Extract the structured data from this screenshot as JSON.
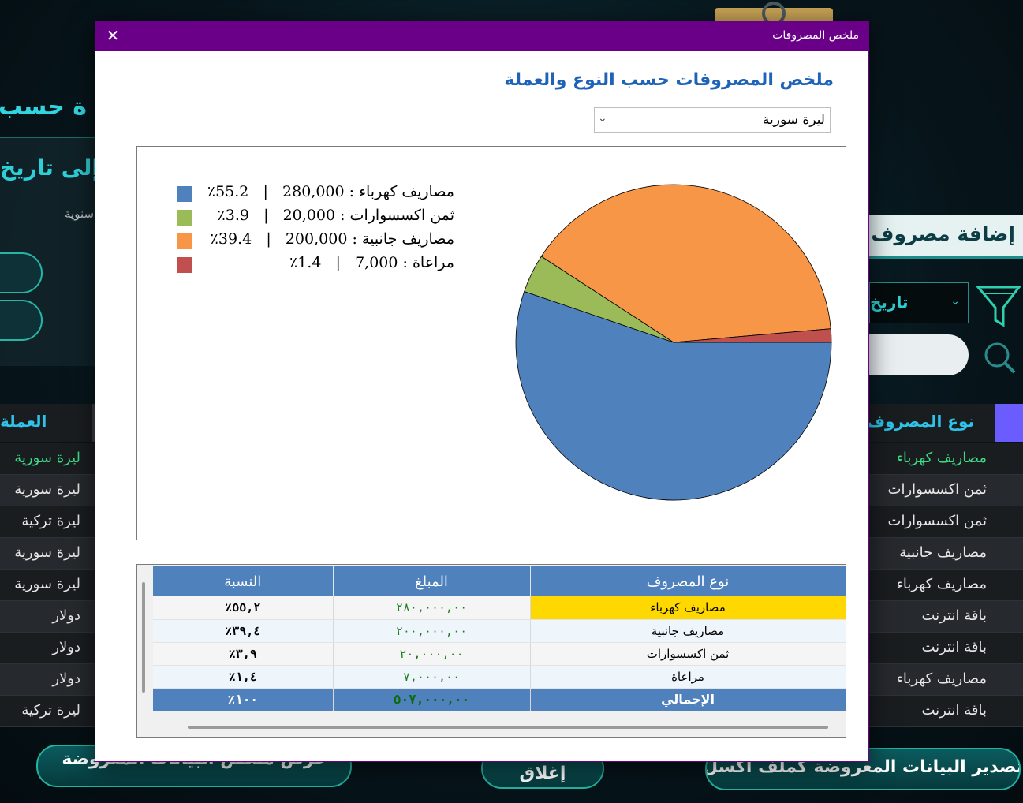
{
  "background": {
    "heading_left": "ة حسب الت",
    "to_date_label": "إلى تاريخ",
    "annual_text": "سنوية",
    "add_expense_title": "إضافة مصروف",
    "date_dropdown_text": "تاريخ",
    "currency_header": "العملة",
    "expense_type_header": "نوع المصروف",
    "left_rows": [
      "ليرة سورية",
      "ليرة سورية",
      "ليرة تركية",
      "ليرة سورية",
      "ليرة سورية",
      "دولار",
      "دولار",
      "دولار",
      "ليرة تركية"
    ],
    "right_rows": [
      "مصاريف كهرباء",
      "ثمن اكسسوارات",
      "ثمن اكسسوارات",
      "مصاريف جانبية",
      "مصاريف كهرباء",
      "باقة انترنت",
      "باقة انترنت",
      "مصاريف كهرباء",
      "باقة انترنت"
    ],
    "btn_summary": "عرض ملخص البيانات المعروضة",
    "btn_close": "إغلاق",
    "btn_export": "تصدير البيانات المعروضة كملف اكسل",
    "accent_color": "#32d4e0",
    "highlight_color": "#3ddc84"
  },
  "dialog": {
    "title": "ملخص المصروفات",
    "close_glyph": "✕",
    "heading": "ملخص المصروفات حسب النوع والعملة",
    "currency_selected": "ليرة سورية",
    "grid": {
      "headers": [
        "نوع المصروف",
        "المبلغ",
        "النسبة"
      ],
      "rows": [
        {
          "type": "مصاريف كهرباء",
          "amount": "٢٨٠,٠٠٠,٠٠",
          "percent": "٥٥,٢٪"
        },
        {
          "type": "مصاريف جانبية",
          "amount": "٢٠٠,٠٠٠,٠٠",
          "percent": "٣٩,٤٪"
        },
        {
          "type": "ثمن اكسسوارات",
          "amount": "٢٠,٠٠٠,٠٠",
          "percent": "٣,٩٪"
        },
        {
          "type": "مراعاة",
          "amount": "٧,٠٠٠,٠٠",
          "percent": "١,٤٪"
        }
      ],
      "total": {
        "type": "الإجمالي",
        "amount": "٥٠٧,٠٠٠,٠٠",
        "percent": "١٠٠٪"
      }
    }
  },
  "chart_data": {
    "type": "pie",
    "title": "",
    "categories": [
      "مصاريف كهرباء",
      "ثمن اكسسوارات",
      "مصاريف جانبية",
      "مراعاة"
    ],
    "values": [
      280000,
      20000,
      200000,
      7000
    ],
    "percents": [
      55.2,
      3.9,
      39.4,
      1.4
    ],
    "colors": [
      "#4f81bd",
      "#9bbb59",
      "#f79646",
      "#c0504d"
    ],
    "legend_labels": [
      "مصاريف كهرباء : 280,000   |   55.2٪",
      "ثمن اكسسوارات : 20,000   |   3.9٪",
      "مصاريف جانبية : 200,000   |   39.4٪",
      "مراعاة : 7,000   |   1.4٪"
    ],
    "legend_position": "top-left"
  }
}
